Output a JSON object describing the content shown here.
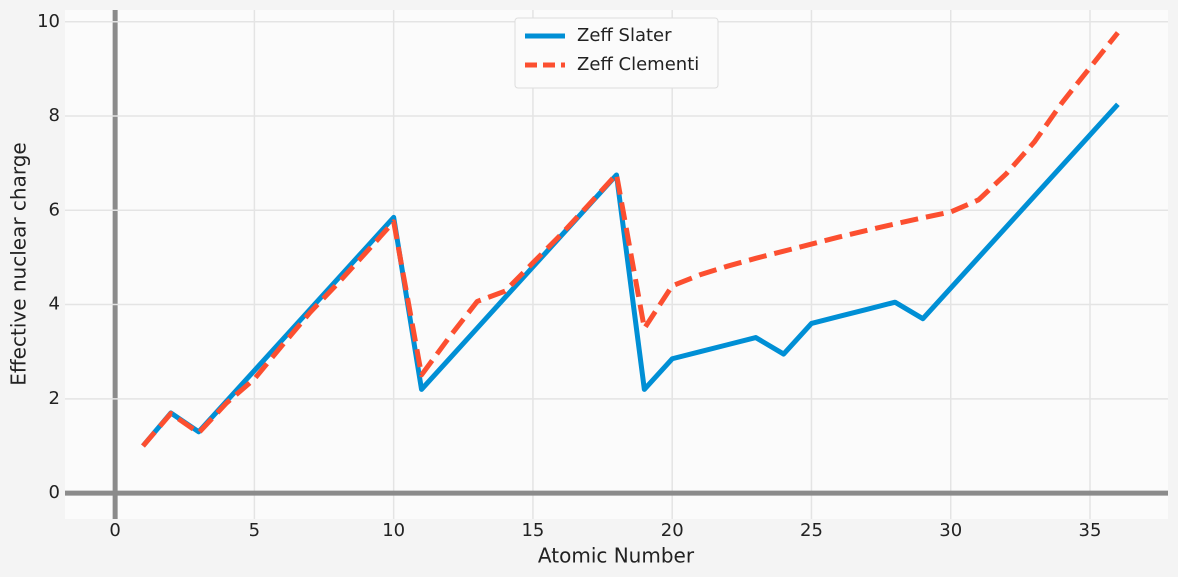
{
  "chart_data": {
    "type": "line",
    "x_label": "Atomic Number",
    "y_label": "Effective nuclear charge",
    "x": [
      1,
      2,
      3,
      4,
      5,
      6,
      7,
      8,
      9,
      10,
      11,
      12,
      13,
      14,
      15,
      16,
      17,
      18,
      19,
      20,
      21,
      22,
      23,
      24,
      25,
      26,
      27,
      28,
      29,
      30,
      31,
      32,
      33,
      34,
      35,
      36
    ],
    "series": [
      {
        "name": "Zeff Slater",
        "color": "#008fd5",
        "dash": false,
        "values": [
          1,
          1.7,
          1.3,
          1.95,
          2.6,
          3.25,
          3.9,
          4.55,
          5.2,
          5.85,
          2.2,
          2.85,
          3.5,
          4.15,
          4.8,
          5.45,
          6.1,
          6.75,
          2.2,
          2.85,
          3.0,
          3.15,
          3.3,
          2.95,
          3.6,
          3.75,
          3.9,
          4.05,
          3.7,
          4.35,
          5.0,
          5.65,
          6.3,
          6.95,
          7.6,
          8.25
        ]
      },
      {
        "name": "Zeff Clementi",
        "color": "#fc4f30",
        "dash": true,
        "values": [
          1,
          1.688,
          1.279,
          1.912,
          2.421,
          3.136,
          3.834,
          4.453,
          5.1,
          5.758,
          2.507,
          3.308,
          4.066,
          4.285,
          4.886,
          5.482,
          6.116,
          6.764,
          3.495,
          4.398,
          4.632,
          4.817,
          4.981,
          5.133,
          5.283,
          5.434,
          5.576,
          5.711,
          5.842,
          5.965,
          6.222,
          6.78,
          7.449,
          8.287,
          9.028,
          9.769
        ]
      }
    ],
    "xlim": [
      -1.8,
      37.8
    ],
    "ylim": [
      -0.55,
      10.25
    ],
    "xticks": [
      0,
      5,
      10,
      15,
      20,
      25,
      30,
      35
    ],
    "yticks": [
      0,
      2,
      4,
      6,
      8,
      10
    ],
    "grid": true,
    "legend": "upper center"
  }
}
